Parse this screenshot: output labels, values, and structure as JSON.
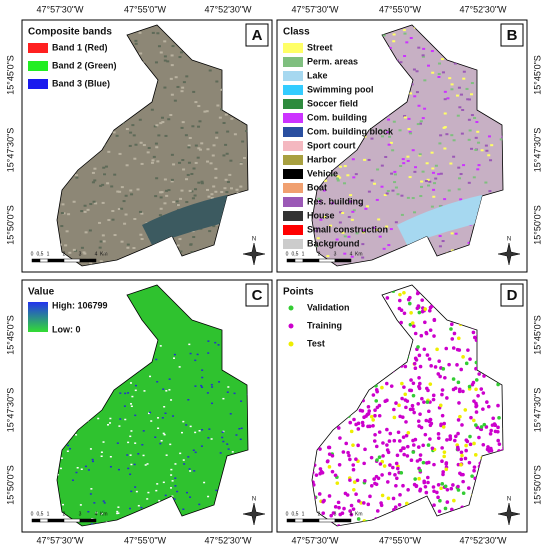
{
  "coords": {
    "lon": [
      "47°57'30\"W",
      "47°55'0\"W",
      "47°52'30\"W"
    ],
    "lat": [
      "15°45'0\"S",
      "15°47'30\"S",
      "15°50'0\"S"
    ]
  },
  "scale": {
    "ticks": [
      "0",
      "0,5",
      "1",
      "2",
      "3",
      "4"
    ],
    "unit": "Km"
  },
  "north": "N",
  "panels": [
    {
      "letter": "A",
      "legend_title": "Composite bands",
      "items": [
        {
          "label": "Band 1 (Red)",
          "color": "#ff2020"
        },
        {
          "label": "Band 2 (Green)",
          "color": "#22ee22"
        },
        {
          "label": "Band 3 (Blue)",
          "color": "#1a1aee"
        }
      ]
    },
    {
      "letter": "B",
      "legend_title": "Class",
      "items": [
        {
          "label": "Street",
          "color": "#ffff66"
        },
        {
          "label": "Perm. areas",
          "color": "#7fbf7f"
        },
        {
          "label": "Lake",
          "color": "#a6d8f0"
        },
        {
          "label": "Swimming pool",
          "color": "#33ccff"
        },
        {
          "label": "Soccer field",
          "color": "#2e8b3e"
        },
        {
          "label": "Com. building",
          "color": "#cc33ff"
        },
        {
          "label": "Com. building block",
          "color": "#2a4fa0"
        },
        {
          "label": "Sport court",
          "color": "#f4b8c0"
        },
        {
          "label": "Harbor",
          "color": "#a8a040"
        },
        {
          "label": "Vehicle",
          "color": "#000000"
        },
        {
          "label": "Boat",
          "color": "#f0a070"
        },
        {
          "label": "Res. building",
          "color": "#9b59b6"
        },
        {
          "label": "House",
          "color": "#333333"
        },
        {
          "label": "Small construction",
          "color": "#ff0000"
        },
        {
          "label": "Background",
          "color": "#cccccc"
        }
      ]
    },
    {
      "letter": "C",
      "legend_title": "Value",
      "high": "High: 106799",
      "low": "Low: 0"
    },
    {
      "letter": "D",
      "legend_title": "Points",
      "items": [
        {
          "label": "Validation",
          "color": "#33cc33"
        },
        {
          "label": "Training",
          "color": "#cc00cc"
        },
        {
          "label": "Test",
          "color": "#eeee00"
        }
      ]
    }
  ]
}
